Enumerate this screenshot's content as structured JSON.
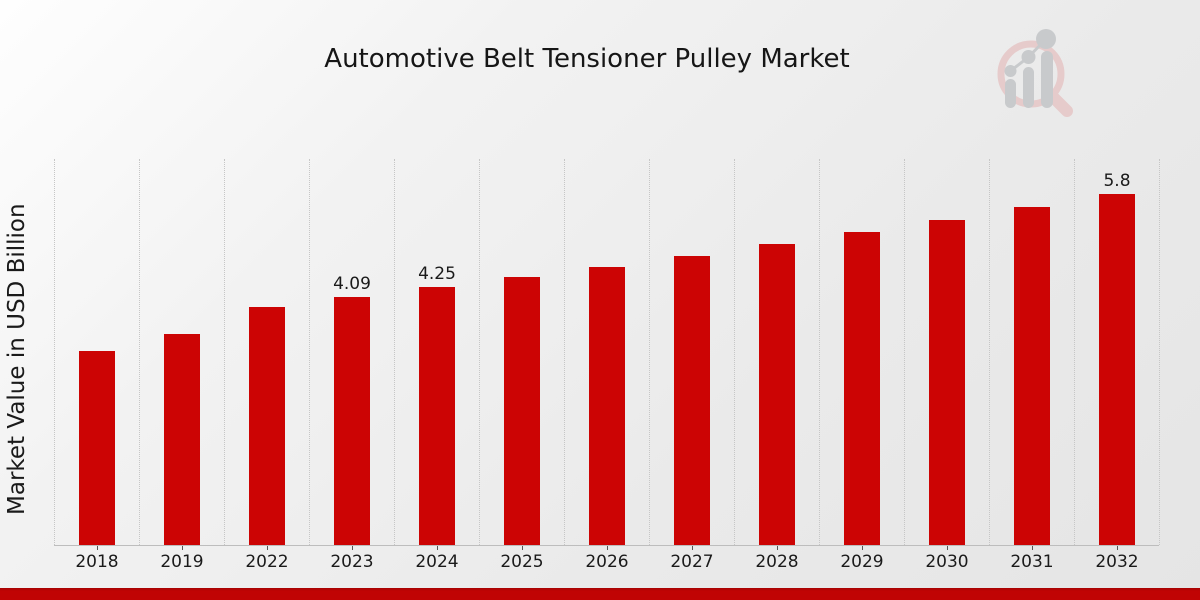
{
  "chart_data": {
    "type": "bar",
    "title": "Automotive Belt Tensioner Pulley Market",
    "ylabel": "Market Value in USD Billion",
    "xlabel": "",
    "categories": [
      "2018",
      "2019",
      "2022",
      "2023",
      "2024",
      "2025",
      "2026",
      "2027",
      "2028",
      "2029",
      "2030",
      "2031",
      "2032"
    ],
    "values": [
      3.2,
      3.49,
      3.92,
      4.09,
      4.25,
      4.42,
      4.59,
      4.77,
      4.96,
      5.16,
      5.36,
      5.57,
      5.8
    ],
    "shown_value_labels": {
      "2023": "4.09",
      "2024": "4.25",
      "2032": "5.8"
    },
    "ylim": [
      0,
      6.37
    ],
    "grid": "vertical-dotted-category-boundaries",
    "legend": "none",
    "bar_color": "#cc0404"
  },
  "icons": {
    "logo": "magnifier-bar-chart-logo"
  },
  "colors": {
    "grid_line": "#c6c6c6",
    "axis_line": "#bdbdbd",
    "text": "#1a1a1a",
    "footer_stripe": "#c00404",
    "logo_ring_pink": "#e6c8c8",
    "logo_bars_gray": "#c5c7c9"
  }
}
